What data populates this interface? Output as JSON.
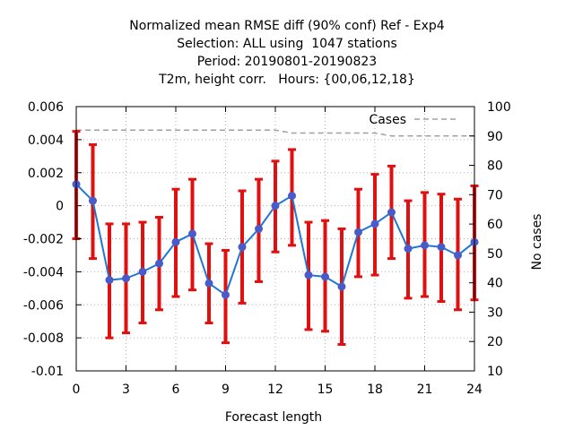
{
  "chart_data": {
    "type": "line",
    "title_lines": [
      "Normalized mean RMSE diff (90% conf) Ref - Exp4",
      "Selection: ALL using  1047 stations",
      "Period: 20190801-20190823",
      "T2m, height corr.   Hours: {00,06,12,18}"
    ],
    "xlabel": "Forecast length",
    "ylabel": "",
    "y2label": "No cases",
    "xlim": [
      0,
      24
    ],
    "ylim": [
      -0.01,
      0.006
    ],
    "y2lim": [
      10,
      100
    ],
    "xticks": [
      0,
      3,
      6,
      9,
      12,
      15,
      18,
      21,
      24
    ],
    "yticks": [
      -0.01,
      -0.008,
      -0.006,
      -0.004,
      -0.002,
      0,
      0.002,
      0.004,
      0.006
    ],
    "ytick_labels": [
      "-0.01",
      "-0.008",
      "-0.006",
      "-0.004",
      "-0.002",
      "0",
      "0.002",
      "0.004",
      "0.006"
    ],
    "y2ticks": [
      10,
      20,
      30,
      40,
      50,
      60,
      70,
      80,
      90,
      100
    ],
    "grid": true,
    "legend_label": "Cases",
    "legend_position": "top-right",
    "colors": {
      "mean": "#1f77d4",
      "marker": "#4a5bc8",
      "errorbar": "#e01010",
      "cases": "#a0a0a0",
      "grid": "#b0b0b0"
    },
    "series": [
      {
        "x": [
          0,
          1,
          2,
          3,
          4,
          5,
          6,
          7,
          8,
          9,
          10,
          11,
          12,
          13,
          14,
          15,
          16,
          17,
          18,
          19,
          20,
          21,
          22,
          23,
          24
        ],
        "values": [
          0.0013,
          0.0003,
          -0.0045,
          -0.0044,
          -0.004,
          -0.0035,
          -0.0022,
          -0.0017,
          -0.0047,
          -0.0054,
          -0.0025,
          -0.0014,
          0.0,
          0.0006,
          -0.0042,
          -0.0043,
          -0.0049,
          -0.0016,
          -0.0011,
          -0.0004,
          -0.0026,
          -0.0024,
          -0.0025,
          -0.003,
          -0.0022
        ],
        "lower": [
          -0.002,
          -0.0032,
          -0.008,
          -0.0077,
          -0.0071,
          -0.0063,
          -0.0055,
          -0.0051,
          -0.0071,
          -0.0083,
          -0.0059,
          -0.0046,
          -0.0028,
          -0.0024,
          -0.0075,
          -0.0076,
          -0.0084,
          -0.0043,
          -0.0042,
          -0.0032,
          -0.0056,
          -0.0055,
          -0.0058,
          -0.0063,
          -0.0057
        ],
        "upper": [
          0.0045,
          0.0037,
          -0.0011,
          -0.0011,
          -0.001,
          -0.0007,
          0.001,
          0.0016,
          -0.0023,
          -0.0027,
          0.0009,
          0.0016,
          0.0027,
          0.0034,
          -0.001,
          -0.0009,
          -0.0014,
          0.001,
          0.0019,
          0.0024,
          0.0003,
          0.0008,
          0.0007,
          0.0004,
          0.0012
        ]
      }
    ],
    "cases": {
      "x": [
        0,
        1,
        2,
        3,
        4,
        5,
        6,
        7,
        8,
        9,
        10,
        11,
        12,
        13,
        14,
        15,
        16,
        17,
        18,
        19,
        20,
        21,
        22,
        23,
        24
      ],
      "values": [
        92,
        92,
        92,
        92,
        92,
        92,
        92,
        92,
        92,
        92,
        92,
        92,
        92,
        91,
        91,
        91,
        91,
        91,
        91,
        90,
        90,
        90,
        90,
        90,
        90
      ]
    }
  }
}
